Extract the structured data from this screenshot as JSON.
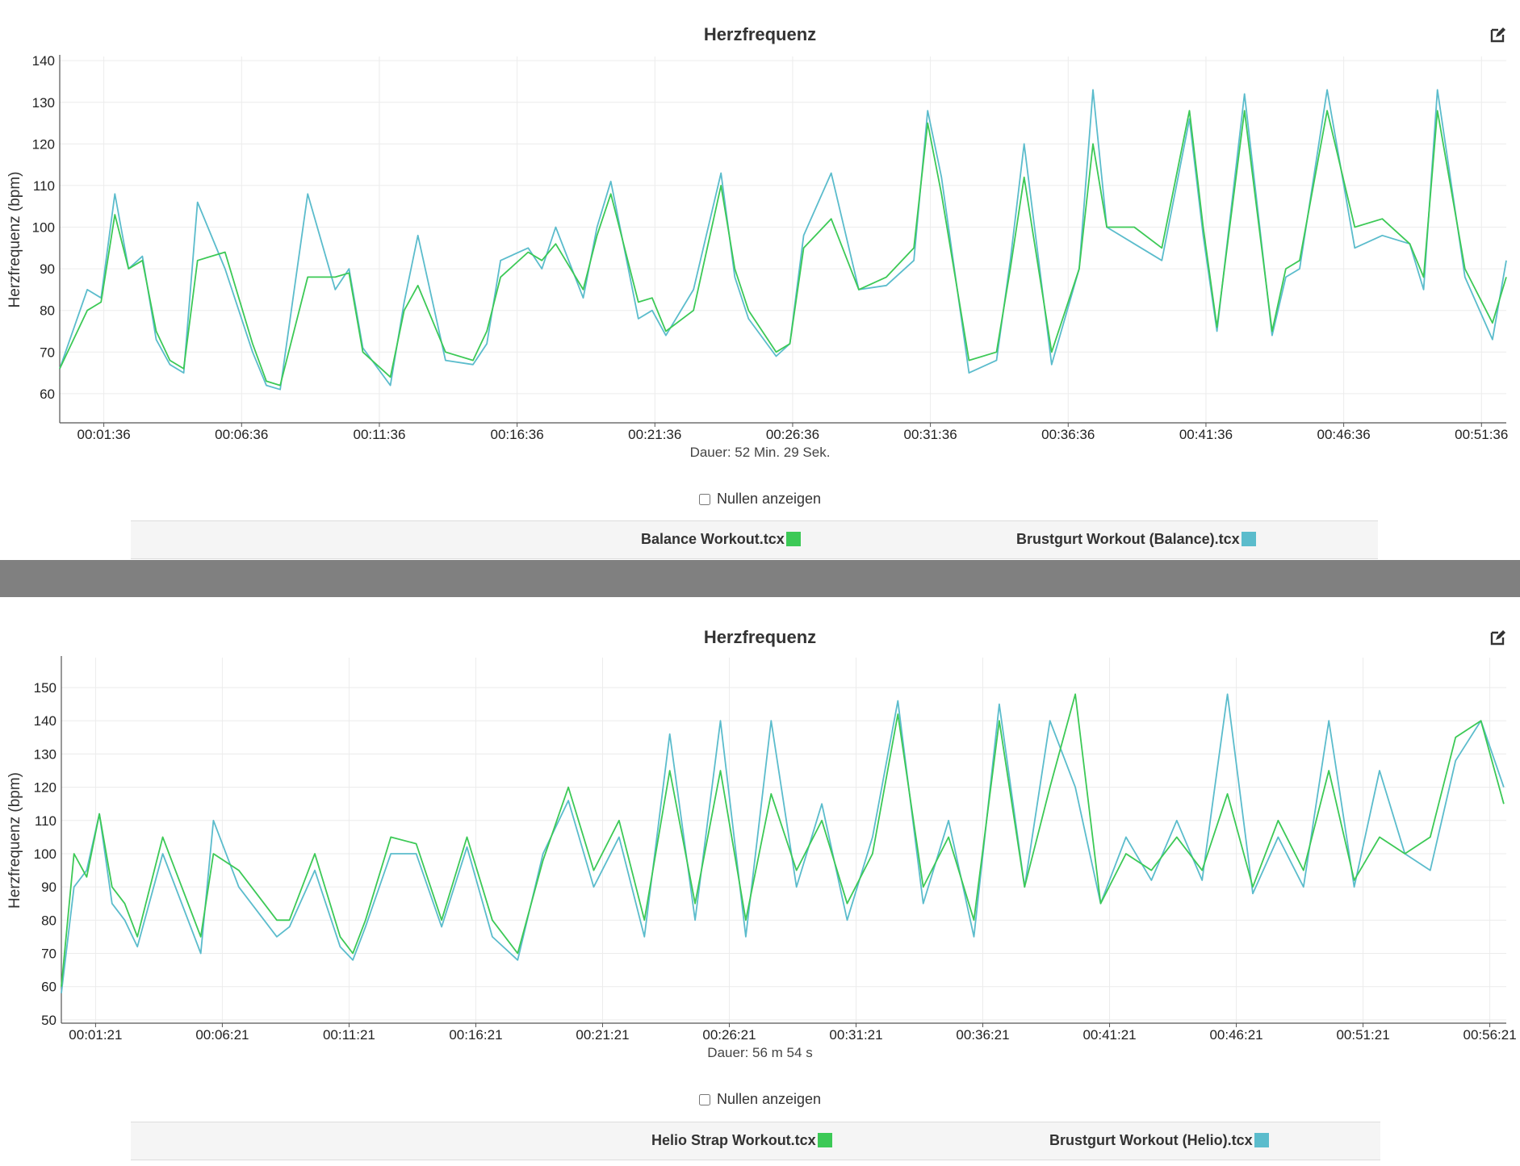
{
  "colors": {
    "series1": "#3cc956",
    "series2": "#5bbccc",
    "grid": "#ececec",
    "divider": "#808080"
  },
  "panels": [
    {
      "title": "Herzfrequenz",
      "edit_icon": "edit-icon",
      "ylabel": "Herzfrequenz (bpm)",
      "yticks": [
        "60",
        "70",
        "80",
        "90",
        "100",
        "110",
        "120",
        "130",
        "140"
      ],
      "xticks": [
        "00:01:36",
        "00:06:36",
        "00:11:36",
        "00:16:36",
        "00:21:36",
        "00:26:36",
        "00:31:36",
        "00:36:36",
        "00:41:36",
        "00:46:36",
        "00:51:36"
      ],
      "duration": "Dauer: 52 Min. 29 Sek.",
      "zeros_label": "Nullen anzeigen",
      "legend": [
        {
          "label": "Balance Workout.tcx"
        },
        {
          "label": "Brustgurt Workout (Balance).tcx"
        }
      ]
    },
    {
      "title": "Herzfrequenz",
      "edit_icon": "edit-icon",
      "ylabel": "Herzfrequenz (bpm)",
      "yticks": [
        "50",
        "60",
        "70",
        "80",
        "90",
        "100",
        "110",
        "120",
        "130",
        "140",
        "150"
      ],
      "xticks": [
        "00:01:21",
        "00:06:21",
        "00:11:21",
        "00:16:21",
        "00:21:21",
        "00:26:21",
        "00:31:21",
        "00:36:21",
        "00:41:21",
        "00:46:21",
        "00:51:21",
        "00:56:21"
      ],
      "duration": "Dauer: 56 m 54 s",
      "zeros_label": "Nullen anzeigen",
      "legend": [
        {
          "label": "Helio Strap Workout.tcx"
        },
        {
          "label": "Brustgurt Workout (Helio).tcx"
        }
      ]
    }
  ],
  "chart_data": [
    {
      "type": "line",
      "title": "Herzfrequenz",
      "xlabel": "Dauer: 52 Min. 29 Sek.",
      "ylabel": "Herzfrequenz (bpm)",
      "ylim": [
        53,
        141
      ],
      "xlim_minutes": [
        0,
        52.5
      ],
      "grid": true,
      "legend_position": "bottom",
      "x_minutes": [
        0,
        1,
        1.5,
        2,
        2.5,
        3,
        3.5,
        4,
        4.5,
        5,
        6,
        7,
        7.5,
        8,
        9,
        10,
        10.5,
        11,
        12,
        12.5,
        13,
        14,
        15,
        15.5,
        16,
        17,
        17.5,
        18,
        19,
        19.5,
        20,
        21,
        21.5,
        22,
        23,
        24,
        24.5,
        25,
        26,
        26.5,
        27,
        28,
        29,
        30,
        31,
        31.5,
        32,
        33,
        34,
        34.5,
        35,
        36,
        37,
        37.5,
        38,
        39,
        40,
        41,
        41.5,
        42,
        43,
        44,
        44.5,
        45,
        46,
        47,
        48,
        49,
        49.5,
        50,
        51,
        52,
        52.5
      ],
      "series": [
        {
          "name": "Balance Workout.tcx",
          "values": [
            66,
            80,
            82,
            103,
            90,
            92,
            75,
            68,
            66,
            92,
            94,
            72,
            63,
            62,
            88,
            88,
            89,
            70,
            64,
            80,
            86,
            70,
            68,
            75,
            88,
            94,
            92,
            96,
            85,
            98,
            108,
            82,
            83,
            75,
            80,
            110,
            90,
            80,
            70,
            72,
            95,
            102,
            85,
            88,
            95,
            125,
            108,
            68,
            70,
            90,
            112,
            70,
            90,
            120,
            100,
            100,
            95,
            128,
            100,
            76,
            128,
            75,
            90,
            92,
            128,
            100,
            102,
            96,
            88,
            128,
            90,
            77,
            88
          ]
        },
        {
          "name": "Brustgurt Workout (Balance).tcx",
          "values": [
            66,
            85,
            83,
            108,
            90,
            93,
            73,
            67,
            65,
            106,
            90,
            70,
            62,
            61,
            108,
            85,
            90,
            71,
            62,
            82,
            98,
            68,
            67,
            72,
            92,
            95,
            90,
            100,
            83,
            100,
            111,
            78,
            80,
            74,
            85,
            113,
            88,
            78,
            69,
            72,
            98,
            113,
            85,
            86,
            92,
            128,
            112,
            65,
            68,
            92,
            120,
            67,
            90,
            133,
            100,
            96,
            92,
            126,
            98,
            75,
            132,
            74,
            88,
            90,
            133,
            95,
            98,
            96,
            85,
            133,
            88,
            73,
            92
          ]
        }
      ]
    },
    {
      "type": "line",
      "title": "Herzfrequenz",
      "xlabel": "Dauer: 56 m 54 s",
      "ylabel": "Herzfrequenz (bpm)",
      "ylim": [
        49,
        159
      ],
      "xlim_minutes": [
        0,
        57
      ],
      "grid": true,
      "legend_position": "bottom",
      "x_minutes": [
        0,
        0.5,
        1,
        1.5,
        2,
        2.5,
        3,
        4,
        5,
        5.5,
        6,
        7,
        8,
        8.5,
        9,
        10,
        11,
        11.5,
        12,
        13,
        14,
        15,
        16,
        17,
        18,
        19,
        20,
        21,
        22,
        23,
        24,
        25,
        26,
        27,
        28,
        29,
        30,
        31,
        32,
        33,
        34,
        35,
        36,
        37,
        38,
        39,
        40,
        41,
        42,
        43,
        44,
        45,
        46,
        47,
        48,
        49,
        50,
        51,
        52,
        53,
        54,
        55,
        56,
        56.9
      ],
      "series": [
        {
          "name": "Helio Strap Workout.tcx",
          "values": [
            60,
            100,
            93,
            112,
            90,
            85,
            75,
            105,
            85,
            75,
            100,
            95,
            85,
            80,
            80,
            100,
            75,
            70,
            80,
            105,
            103,
            80,
            105,
            80,
            70,
            98,
            120,
            95,
            110,
            80,
            125,
            85,
            125,
            80,
            118,
            95,
            110,
            85,
            100,
            142,
            90,
            105,
            80,
            140,
            90,
            120,
            148,
            85,
            100,
            95,
            105,
            95,
            118,
            90,
            110,
            95,
            125,
            92,
            105,
            100,
            105,
            135,
            140,
            115
          ]
        },
        {
          "name": "Brustgurt Workout (Helio).tcx",
          "values": [
            58,
            90,
            95,
            112,
            85,
            80,
            72,
            100,
            80,
            70,
            110,
            90,
            80,
            75,
            78,
            95,
            72,
            68,
            78,
            100,
            100,
            78,
            102,
            75,
            68,
            100,
            116,
            90,
            105,
            75,
            136,
            80,
            140,
            75,
            140,
            90,
            115,
            80,
            105,
            146,
            85,
            110,
            75,
            145,
            90,
            140,
            120,
            85,
            105,
            92,
            110,
            92,
            148,
            88,
            105,
            90,
            140,
            90,
            125,
            100,
            95,
            128,
            140,
            120
          ]
        }
      ]
    }
  ]
}
